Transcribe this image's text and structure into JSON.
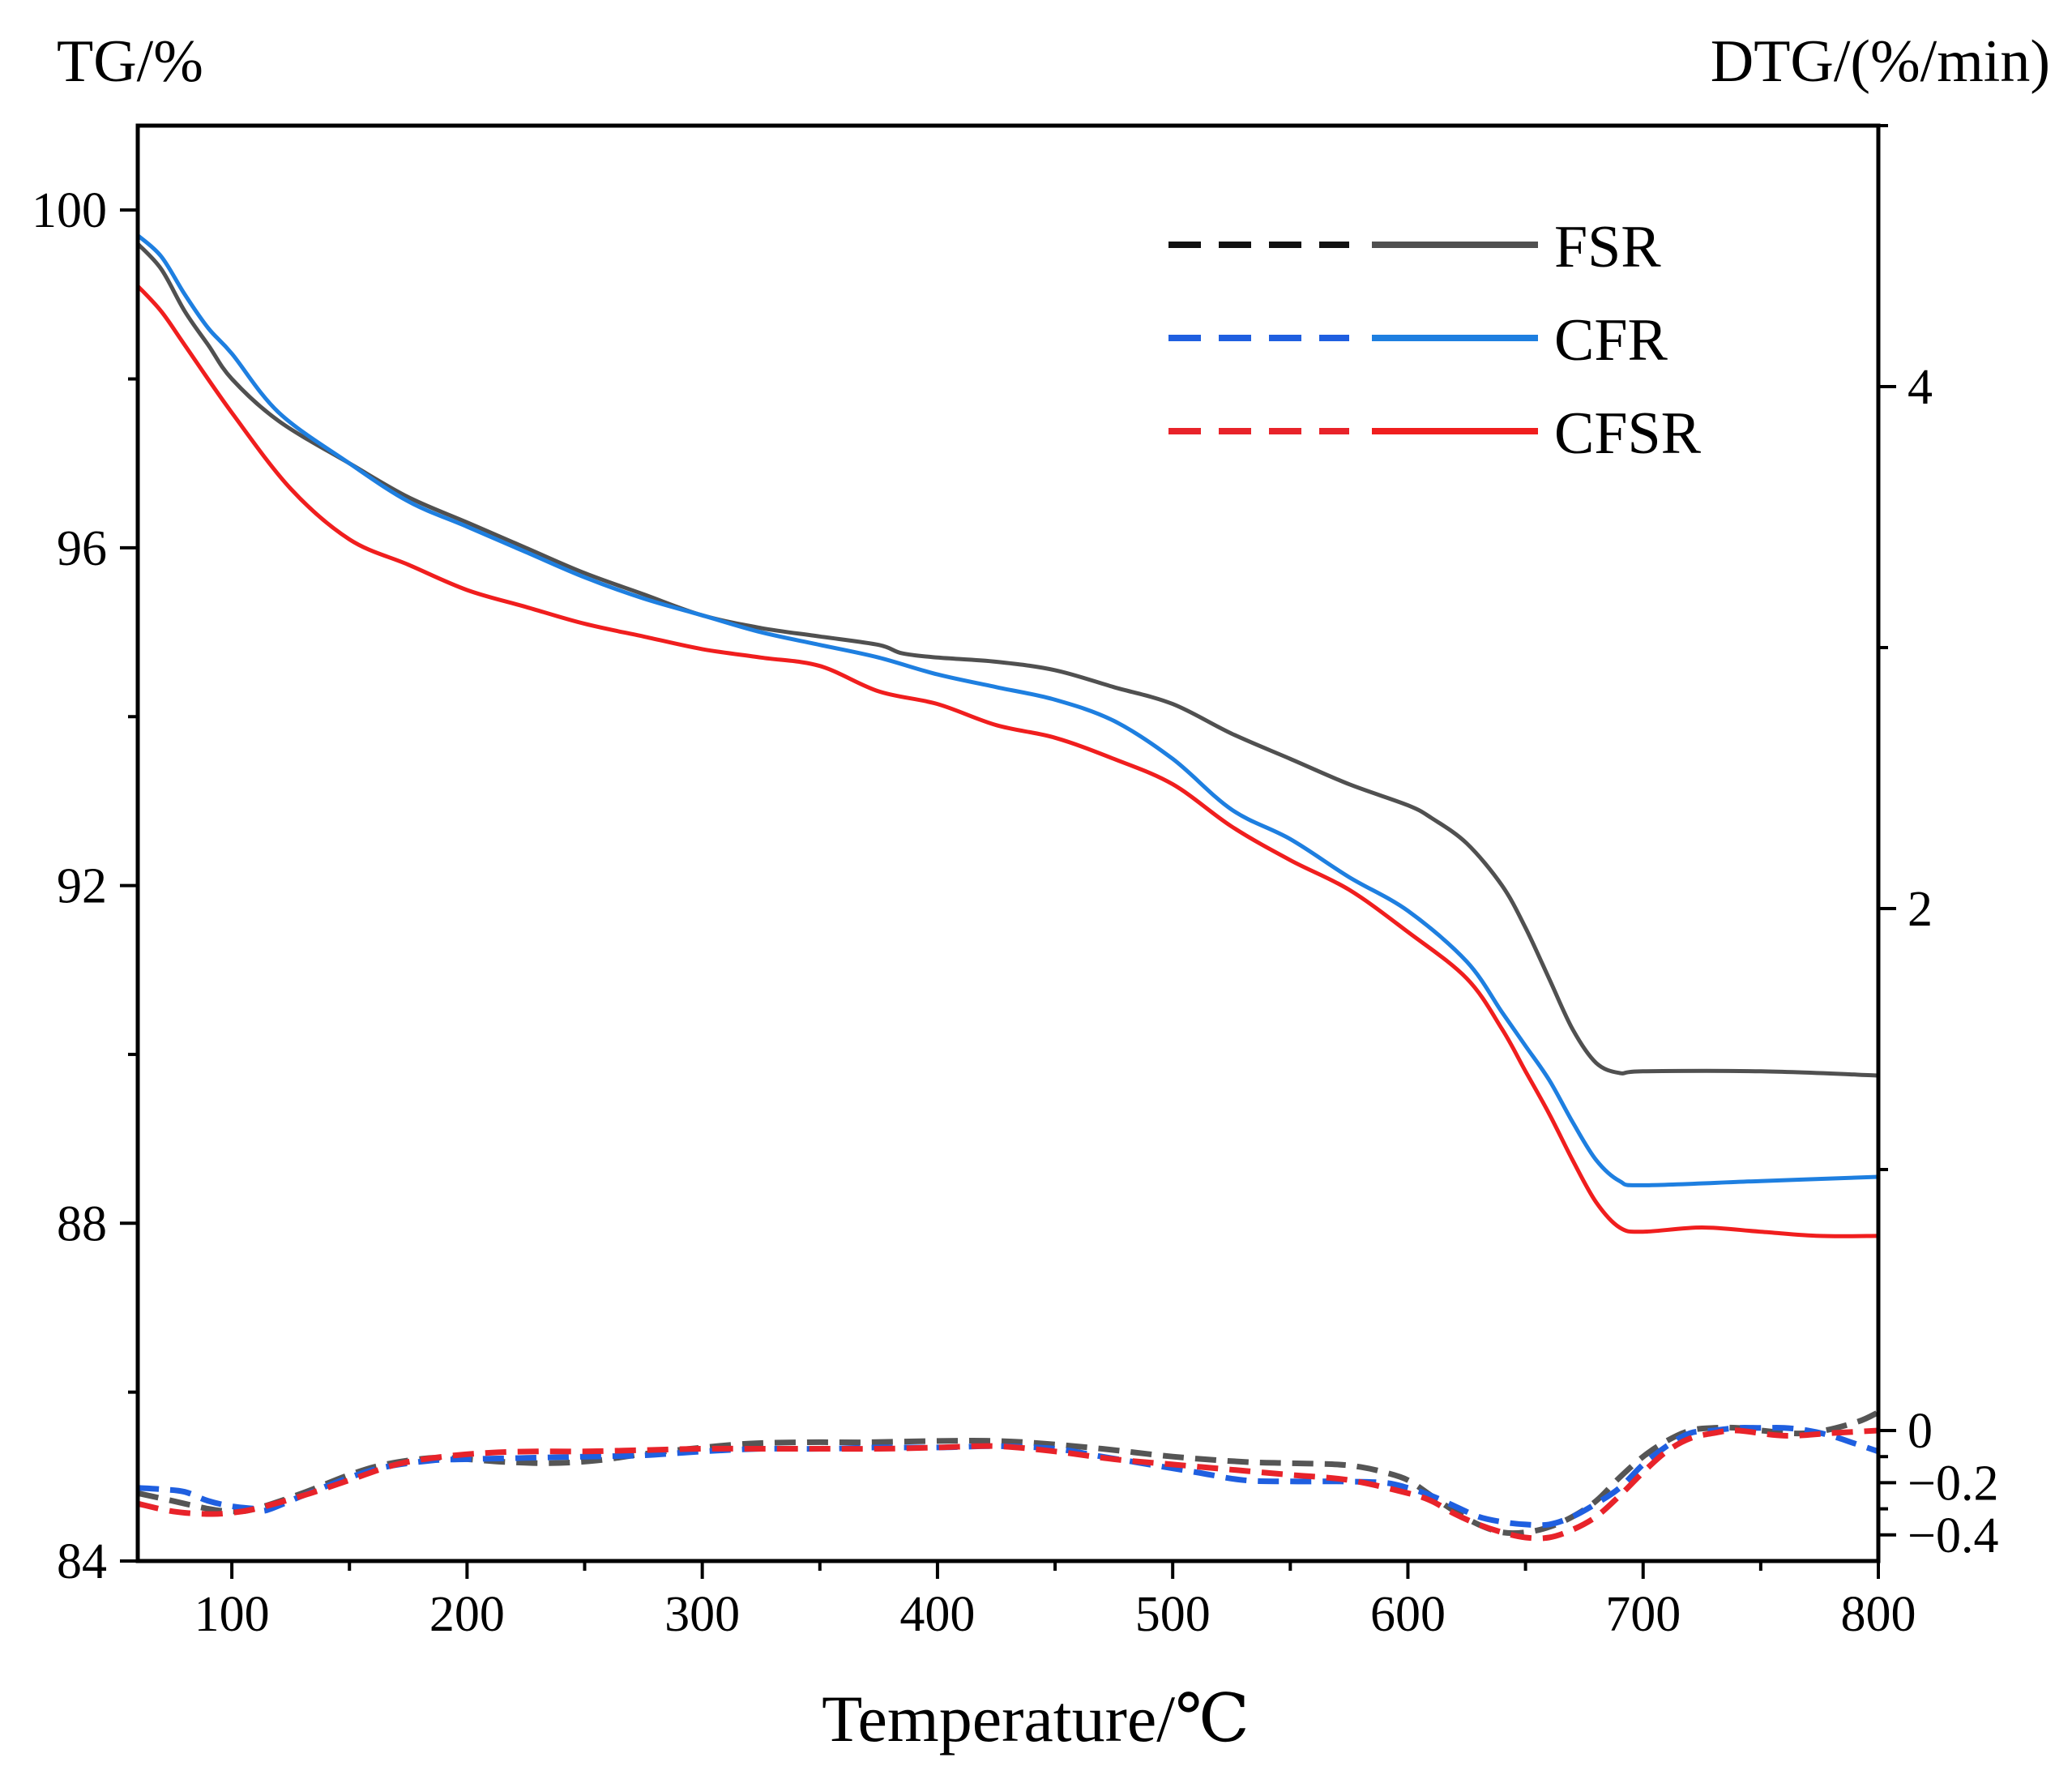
{
  "chart_data": {
    "type": "line",
    "x_axis": {
      "label": "Temperature/℃",
      "range": [
        60,
        800
      ],
      "ticks": [
        100,
        200,
        300,
        400,
        500,
        600,
        700,
        800
      ],
      "tick_labels": [
        "100",
        "200",
        "300",
        "400",
        "500",
        "600",
        "700",
        "800"
      ],
      "minor_step": 50
    },
    "y_left": {
      "label": "TG/%",
      "range": [
        84,
        101
      ],
      "ticks": [
        84,
        88,
        92,
        96,
        100
      ],
      "tick_labels": [
        "84",
        "88",
        "92",
        "96",
        "100"
      ],
      "minor_step": 2
    },
    "y_right": {
      "label": "DTG/(%/min)",
      "range": [
        -0.5,
        5
      ],
      "ticks": [
        4,
        2,
        0,
        -0.2,
        -0.4
      ],
      "tick_labels": [
        "4",
        "2",
        "0",
        "−0.2",
        "−0.4"
      ],
      "minor_ticks": [
        5,
        3,
        1,
        -0.1,
        -0.3
      ]
    },
    "legend": {
      "position": "top-right",
      "entries": [
        {
          "label": "FSR",
          "dash_color": "#111111",
          "solid_color": "#505050"
        },
        {
          "label": "CFR",
          "dash_color": "#1F5FE0",
          "solid_color": "#1E7FE0"
        },
        {
          "label": "CFSR",
          "dash_color": "#E8232A",
          "solid_color": "#F01E1E"
        }
      ]
    },
    "series": [
      {
        "name": "FSR",
        "kind": "TG",
        "axis": "left",
        "style": "solid",
        "color": "#505050",
        "x": [
          60,
          70,
          80,
          90,
          100,
          120,
          150,
          175,
          200,
          225,
          250,
          275,
          300,
          325,
          350,
          375,
          385,
          400,
          425,
          450,
          475,
          500,
          525,
          550,
          575,
          600,
          610,
          625,
          640,
          650,
          660,
          670,
          680,
          690,
          700,
          750,
          800
        ],
        "y": [
          99.6,
          99.3,
          98.8,
          98.4,
          98.0,
          97.5,
          97.0,
          96.6,
          96.3,
          96.0,
          95.7,
          95.45,
          95.2,
          95.05,
          94.95,
          94.85,
          94.75,
          94.7,
          94.65,
          94.55,
          94.35,
          94.15,
          93.8,
          93.5,
          93.2,
          92.95,
          92.8,
          92.5,
          92.0,
          91.5,
          90.9,
          90.3,
          89.9,
          89.78,
          89.8,
          89.8,
          89.75
        ]
      },
      {
        "name": "CFR",
        "kind": "TG",
        "axis": "left",
        "style": "solid",
        "color": "#1E7FE0",
        "x": [
          60,
          70,
          80,
          90,
          100,
          120,
          150,
          175,
          200,
          225,
          250,
          275,
          300,
          325,
          350,
          375,
          400,
          425,
          450,
          475,
          500,
          525,
          550,
          575,
          600,
          625,
          640,
          650,
          660,
          670,
          680,
          690,
          700,
          750,
          800
        ],
        "y": [
          99.7,
          99.45,
          99.0,
          98.6,
          98.3,
          97.6,
          97.0,
          96.55,
          96.25,
          95.95,
          95.65,
          95.4,
          95.2,
          95.0,
          94.85,
          94.7,
          94.5,
          94.35,
          94.2,
          93.95,
          93.5,
          92.9,
          92.55,
          92.1,
          91.7,
          91.1,
          90.5,
          90.1,
          89.7,
          89.2,
          88.75,
          88.5,
          88.45,
          88.5,
          88.55
        ]
      },
      {
        "name": "CFSR",
        "kind": "TG",
        "axis": "left",
        "style": "solid",
        "color": "#F01E1E",
        "x": [
          60,
          70,
          80,
          100,
          125,
          150,
          175,
          200,
          225,
          250,
          275,
          300,
          325,
          350,
          375,
          400,
          425,
          450,
          475,
          500,
          525,
          550,
          575,
          600,
          625,
          640,
          650,
          660,
          670,
          680,
          690,
          700,
          725,
          750,
          775,
          800
        ],
        "y": [
          99.1,
          98.8,
          98.4,
          97.6,
          96.7,
          96.1,
          95.8,
          95.5,
          95.3,
          95.1,
          94.95,
          94.8,
          94.7,
          94.6,
          94.3,
          94.15,
          93.9,
          93.75,
          93.5,
          93.2,
          92.7,
          92.3,
          91.95,
          91.45,
          90.9,
          90.3,
          89.8,
          89.3,
          88.75,
          88.25,
          87.95,
          87.9,
          87.95,
          87.9,
          87.85,
          87.85
        ]
      },
      {
        "name": "FSR",
        "kind": "DTG",
        "axis": "right",
        "style": "dashed",
        "color": "#555555",
        "x": [
          60,
          75,
          90,
          100,
          110,
          130,
          150,
          165,
          185,
          200,
          215,
          235,
          255,
          275,
          295,
          320,
          345,
          370,
          400,
          425,
          445,
          470,
          500,
          530,
          550,
          570,
          580,
          590,
          600,
          610,
          620,
          630,
          640,
          650,
          660,
          670,
          680,
          690,
          700,
          710,
          720,
          730,
          740,
          750,
          770,
          790,
          800
        ],
        "y": [
          -0.24,
          -0.27,
          -0.3,
          -0.31,
          -0.3,
          -0.24,
          -0.17,
          -0.13,
          -0.105,
          -0.11,
          -0.12,
          -0.125,
          -0.115,
          -0.09,
          -0.07,
          -0.05,
          -0.045,
          -0.045,
          -0.04,
          -0.04,
          -0.05,
          -0.07,
          -0.1,
          -0.12,
          -0.125,
          -0.13,
          -0.14,
          -0.16,
          -0.19,
          -0.25,
          -0.31,
          -0.36,
          -0.39,
          -0.39,
          -0.37,
          -0.33,
          -0.27,
          -0.18,
          -0.1,
          -0.04,
          0.0,
          0.01,
          0.01,
          0.0,
          -0.01,
          0.03,
          0.07
        ]
      },
      {
        "name": "CFR",
        "kind": "DTG",
        "axis": "right",
        "style": "dashed",
        "color": "#1F5FE0",
        "x": [
          60,
          70,
          80,
          90,
          100,
          110,
          115,
          130,
          150,
          165,
          185,
          200,
          225,
          250,
          275,
          300,
          325,
          350,
          375,
          400,
          425,
          450,
          470,
          490,
          510,
          530,
          550,
          570,
          590,
          600,
          610,
          620,
          630,
          640,
          650,
          660,
          670,
          680,
          690,
          700,
          710,
          720,
          730,
          740,
          750,
          760,
          770,
          780,
          790,
          800
        ],
        "y": [
          -0.22,
          -0.225,
          -0.235,
          -0.27,
          -0.29,
          -0.3,
          -0.305,
          -0.25,
          -0.18,
          -0.14,
          -0.115,
          -0.11,
          -0.105,
          -0.1,
          -0.095,
          -0.08,
          -0.07,
          -0.07,
          -0.065,
          -0.065,
          -0.06,
          -0.07,
          -0.1,
          -0.13,
          -0.16,
          -0.19,
          -0.195,
          -0.195,
          -0.2,
          -0.22,
          -0.25,
          -0.29,
          -0.33,
          -0.35,
          -0.36,
          -0.36,
          -0.33,
          -0.28,
          -0.22,
          -0.13,
          -0.06,
          -0.01,
          0.0,
          0.01,
          0.01,
          0.01,
          0.0,
          -0.02,
          -0.05,
          -0.08
        ]
      },
      {
        "name": "CFSR",
        "kind": "DTG",
        "axis": "right",
        "style": "dashed",
        "color": "#E8232A",
        "x": [
          60,
          75,
          90,
          100,
          110,
          130,
          150,
          170,
          190,
          210,
          230,
          250,
          275,
          300,
          325,
          350,
          375,
          400,
          425,
          450,
          475,
          500,
          525,
          550,
          575,
          600,
          610,
          620,
          630,
          640,
          650,
          660,
          670,
          680,
          690,
          700,
          710,
          720,
          730,
          740,
          760,
          780,
          800
        ],
        "y": [
          -0.28,
          -0.31,
          -0.32,
          -0.315,
          -0.3,
          -0.25,
          -0.19,
          -0.13,
          -0.1,
          -0.085,
          -0.08,
          -0.08,
          -0.075,
          -0.07,
          -0.07,
          -0.07,
          -0.07,
          -0.065,
          -0.06,
          -0.08,
          -0.11,
          -0.13,
          -0.15,
          -0.17,
          -0.19,
          -0.24,
          -0.27,
          -0.32,
          -0.36,
          -0.39,
          -0.41,
          -0.41,
          -0.38,
          -0.33,
          -0.25,
          -0.16,
          -0.08,
          -0.03,
          -0.01,
          0.0,
          -0.02,
          -0.01,
          0.0
        ]
      }
    ]
  }
}
